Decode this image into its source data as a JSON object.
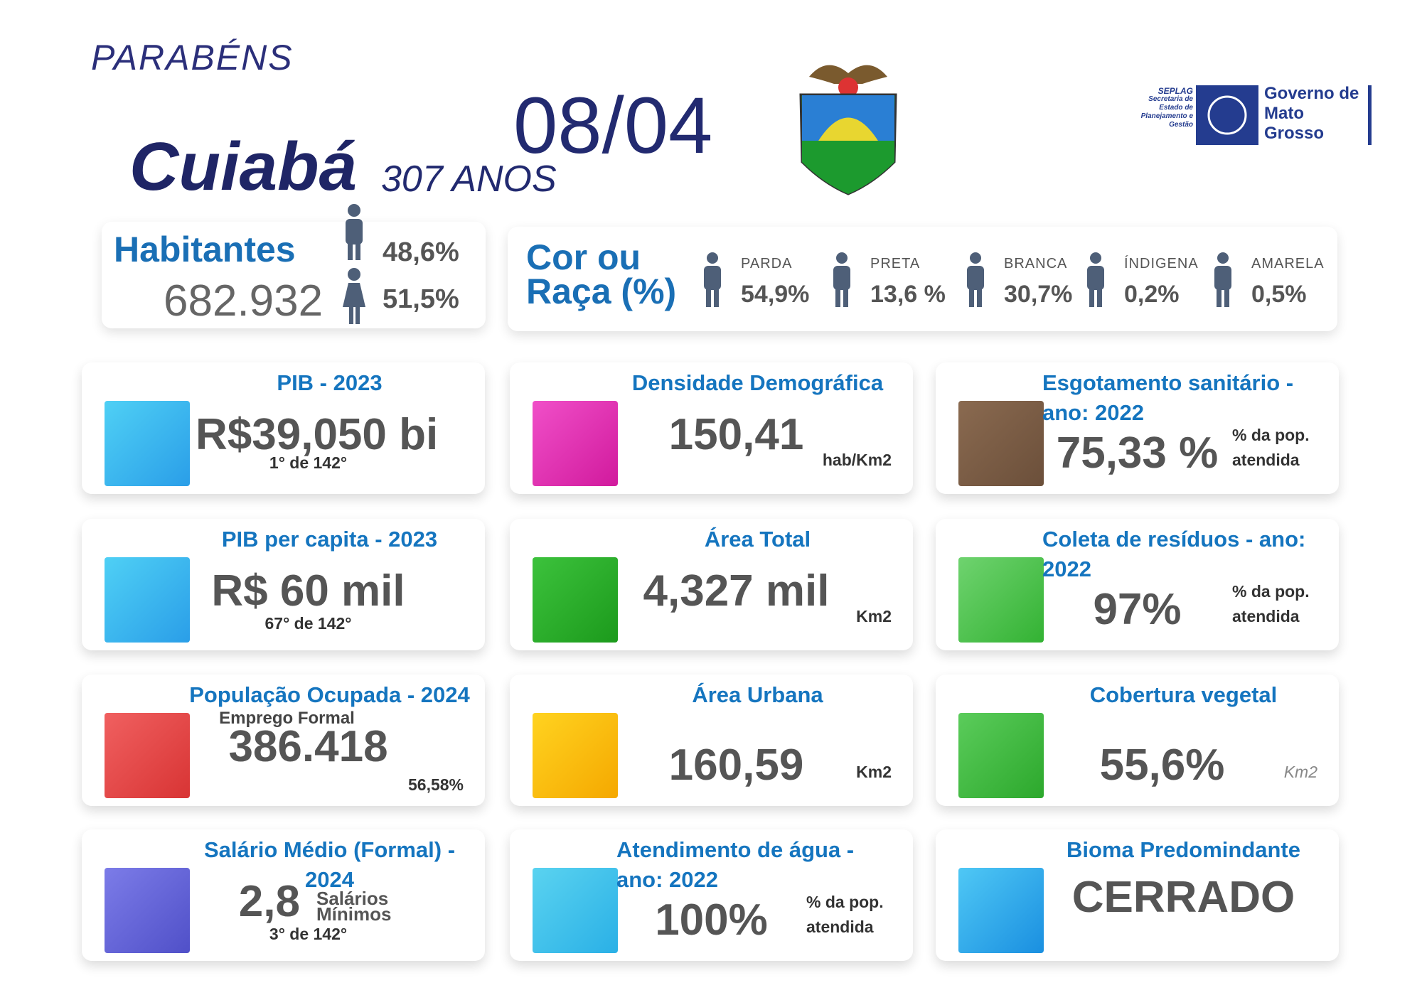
{
  "header": {
    "greeting": "PARABÉNS",
    "date": "08/04",
    "city": "Cuiabá",
    "age": "307 ANOS",
    "logo": {
      "org": "SEPLAG",
      "org_full": "Secretaria de Estado de Planejamento e Gestão",
      "gov": "Governo de Mato Grosso"
    }
  },
  "population": {
    "label": "Habitantes",
    "value": "682.932",
    "male": "48,6%",
    "female": "51,5%"
  },
  "race": {
    "label": "Cor ou Raça (%)",
    "groups": [
      {
        "name": "PARDA",
        "value": "54,9%"
      },
      {
        "name": "PRETA",
        "value": "13,6 %"
      },
      {
        "name": "BRANCA",
        "value": "30,7%"
      },
      {
        "name": "ÍNDIGENA",
        "value": "0,2%"
      },
      {
        "name": "AMARELA",
        "value": "0,5%"
      }
    ]
  },
  "cards": [
    {
      "title": "PIB - 2023",
      "value": "R$39,050 bi",
      "note": "1° de 142°"
    },
    {
      "title": "Densidade Demográfica",
      "value": "150,41",
      "unit": "hab/Km2"
    },
    {
      "title": "Esgotamento sanitário - ano: 2022",
      "value": "75,33 %",
      "unit": "% da pop. atendida"
    },
    {
      "title": "PIB per capita - 2023",
      "value": "R$ 60 mil",
      "note": "67° de 142°"
    },
    {
      "title": "Área Total",
      "value": "4,327 mil",
      "unit": "Km2"
    },
    {
      "title": "Coleta de resíduos - ano: 2022",
      "value": "97%",
      "unit": "% da pop. atendida"
    },
    {
      "title": "População Ocupada - 2024",
      "subtitle": "Emprego Formal",
      "value": "386.418",
      "unit": "56,58%"
    },
    {
      "title": "Área Urbana",
      "value": "160,59",
      "unit": "Km2"
    },
    {
      "title": "Cobertura vegetal",
      "value": "55,6%",
      "unit": "Km2"
    },
    {
      "title": "Salário Médio (Formal) - 2024",
      "value": "2,8",
      "value_suffix": "Salários Mínimos",
      "note": "3° de 142°"
    },
    {
      "title": "Atendimento de água - ano: 2022",
      "value": "100%",
      "unit": "% da pop. atendida"
    },
    {
      "title": "Bioma Predomindante",
      "value": "CERRADO"
    }
  ]
}
